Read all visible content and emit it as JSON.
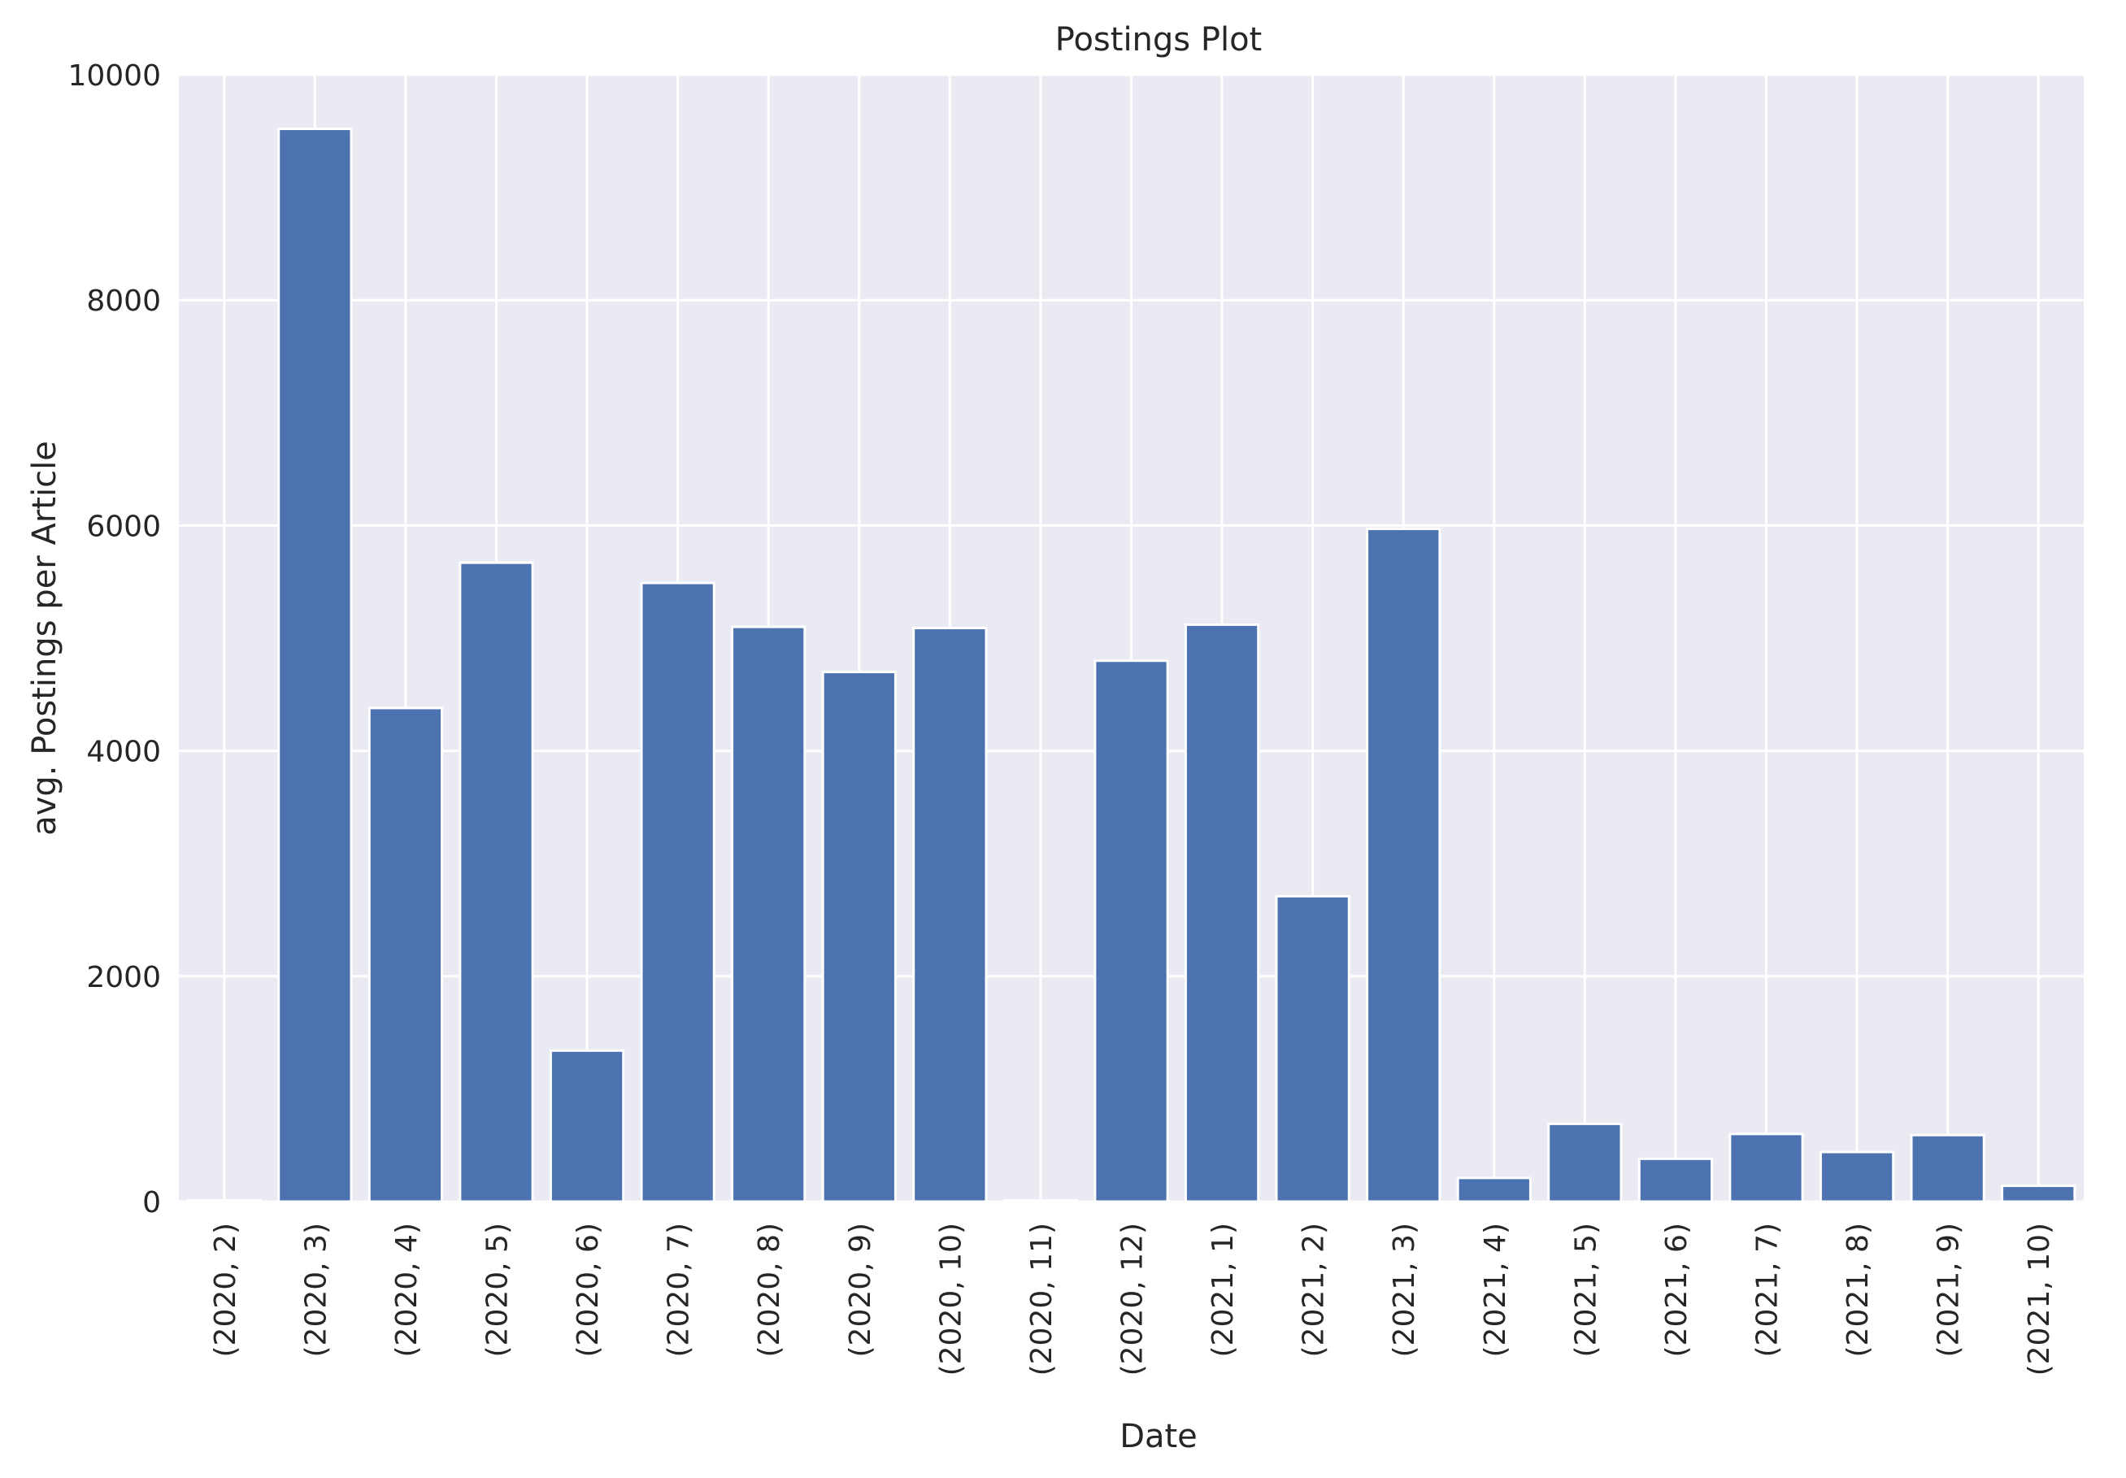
{
  "chart_data": {
    "type": "bar",
    "title": "Postings Plot",
    "xlabel": "Date",
    "ylabel": "avg. Postings per Article",
    "categories": [
      "(2020, 2)",
      "(2020, 3)",
      "(2020, 4)",
      "(2020, 5)",
      "(2020, 6)",
      "(2020, 7)",
      "(2020, 8)",
      "(2020, 9)",
      "(2020, 10)",
      "(2020, 11)",
      "(2020, 12)",
      "(2021, 1)",
      "(2021, 2)",
      "(2021, 3)",
      "(2021, 4)",
      "(2021, 5)",
      "(2021, 6)",
      "(2021, 7)",
      "(2021, 8)",
      "(2021, 9)",
      "(2021, 10)"
    ],
    "values": [
      10,
      9520,
      4380,
      5670,
      1340,
      5490,
      5100,
      4700,
      5090,
      10,
      4800,
      5120,
      2710,
      5970,
      210,
      690,
      380,
      600,
      440,
      590,
      140
    ],
    "ylim": [
      0,
      10000
    ],
    "yticks": [
      0,
      2000,
      4000,
      6000,
      8000,
      10000
    ],
    "grid": true,
    "colors": {
      "bar": "#4c72b0",
      "plot_background": "#eaeaf2",
      "grid": "#ffffff"
    }
  }
}
